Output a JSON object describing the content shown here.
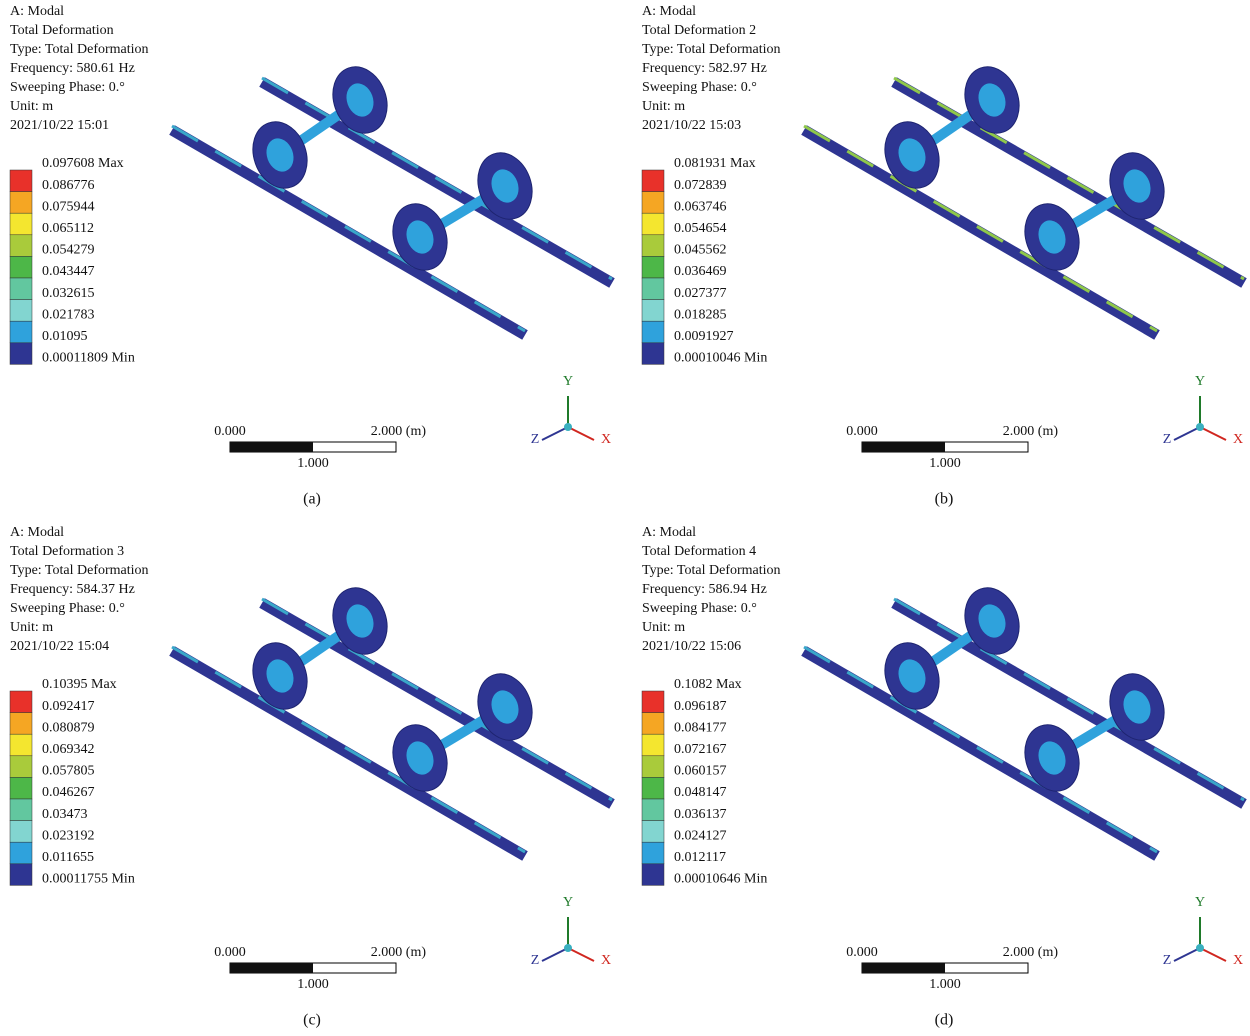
{
  "panels": [
    {
      "header": [
        "A: Modal",
        "Total Deformation",
        "Type: Total Deformation",
        "Frequency: 580.61 Hz",
        "Sweeping Phase: 0.°",
        "Unit: m",
        "2021/10/22 15:01"
      ],
      "legend": [
        "0.097608 Max",
        "0.086776",
        "0.075944",
        "0.065112",
        "0.054279",
        "0.043447",
        "0.032615",
        "0.021783",
        "0.01095",
        "0.00011809 Min"
      ],
      "scale": {
        "start": "0.000",
        "end": "2.000 (m)",
        "mid": "1.000"
      },
      "axes": {
        "y": "Y",
        "z": "Z",
        "x": "X"
      },
      "caption": "(a)"
    },
    {
      "header": [
        "A: Modal",
        "Total Deformation 2",
        "Type: Total Deformation",
        "Frequency: 582.97 Hz",
        "Sweeping Phase: 0.°",
        "Unit: m",
        "2021/10/22 15:03"
      ],
      "legend": [
        "0.081931 Max",
        "0.072839",
        "0.063746",
        "0.054654",
        "0.045562",
        "0.036469",
        "0.027377",
        "0.018285",
        "0.0091927",
        "0.00010046 Min"
      ],
      "scale": {
        "start": "0.000",
        "end": "2.000 (m)",
        "mid": "1.000"
      },
      "axes": {
        "y": "Y",
        "z": "Z",
        "x": "X"
      },
      "caption": "(b)"
    },
    {
      "header": [
        "A: Modal",
        "Total Deformation 3",
        "Type: Total Deformation",
        "Frequency: 584.37 Hz",
        "Sweeping Phase: 0.°",
        "Unit: m",
        "2021/10/22 15:04"
      ],
      "legend": [
        "0.10395 Max",
        "0.092417",
        "0.080879",
        "0.069342",
        "0.057805",
        "0.046267",
        "0.03473",
        "0.023192",
        "0.011655",
        "0.00011755 Min"
      ],
      "scale": {
        "start": "0.000",
        "end": "2.000 (m)",
        "mid": "1.000"
      },
      "axes": {
        "y": "Y",
        "z": "Z",
        "x": "X"
      },
      "caption": "(c)"
    },
    {
      "header": [
        "A: Modal",
        "Total Deformation 4",
        "Type: Total Deformation",
        "Frequency: 586.94 Hz",
        "Sweeping Phase: 0.°",
        "Unit: m",
        "2021/10/22 15:06"
      ],
      "legend": [
        "0.1082 Max",
        "0.096187",
        "0.084177",
        "0.072167",
        "0.060157",
        "0.048147",
        "0.036137",
        "0.024127",
        "0.012117",
        "0.00010646 Min"
      ],
      "scale": {
        "start": "0.000",
        "end": "2.000 (m)",
        "mid": "1.000"
      },
      "axes": {
        "y": "Y",
        "z": "Z",
        "x": "X"
      },
      "caption": "(d)"
    }
  ]
}
